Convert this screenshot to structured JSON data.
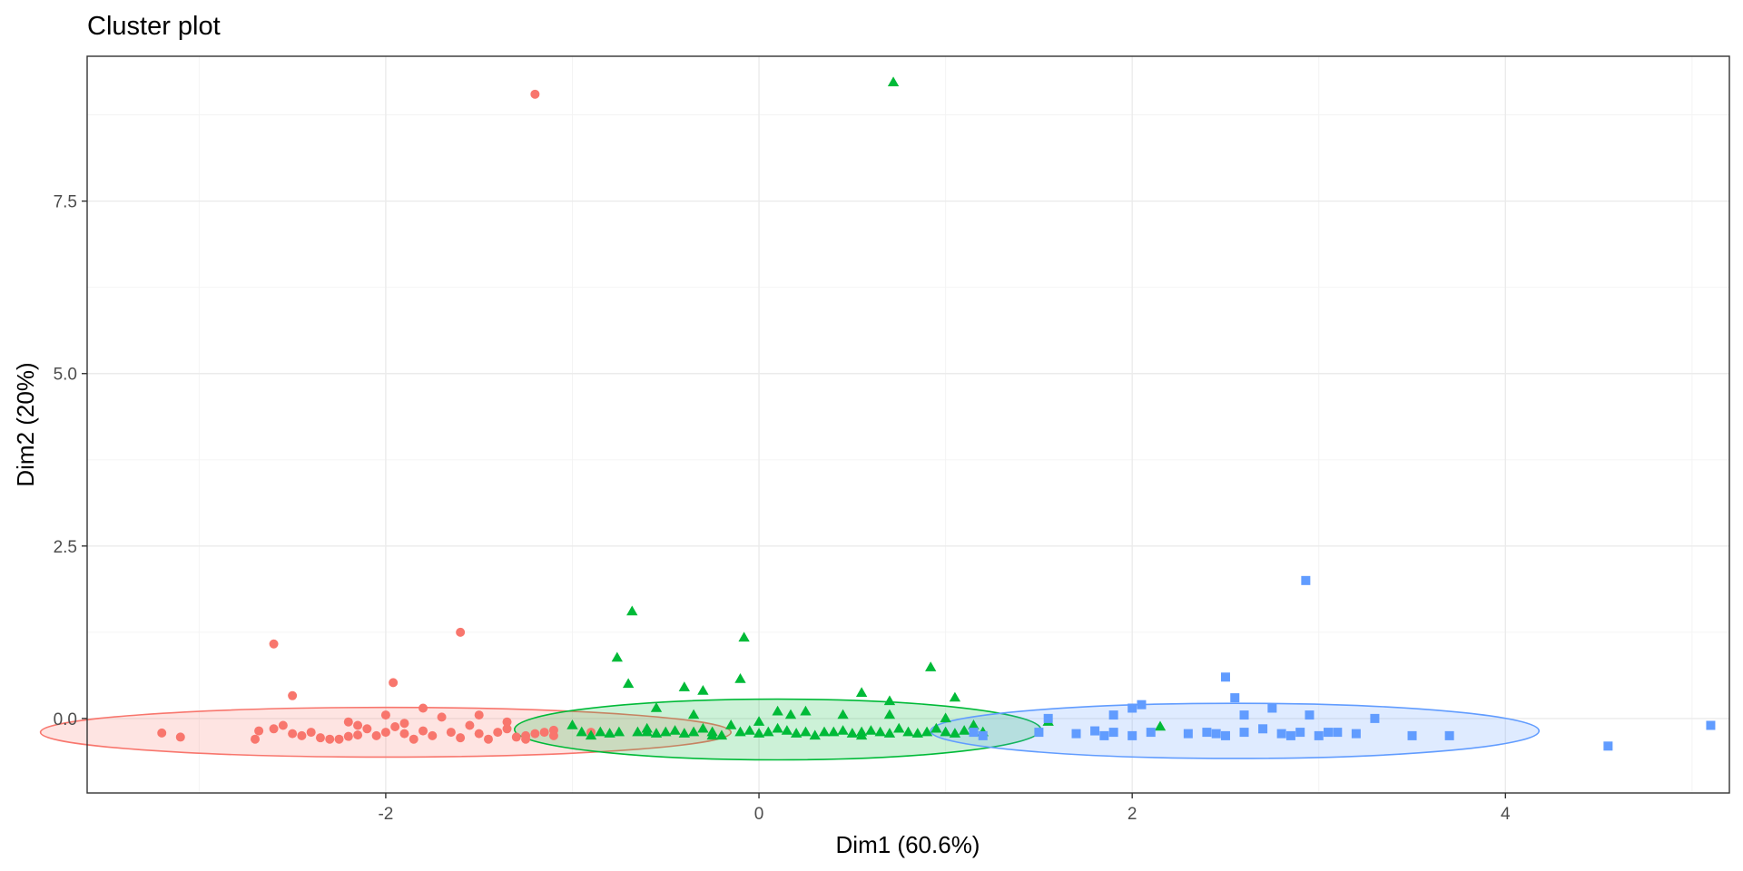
{
  "chart_data": {
    "type": "scatter",
    "title": "Cluster plot",
    "xlabel": "Dim1 (60.6%)",
    "ylabel": "Dim2 (20%)",
    "xlim": [
      -3.6,
      5.2
    ],
    "ylim": [
      -1.08,
      9.6
    ],
    "x_ticks": [
      -2,
      0,
      2,
      4
    ],
    "x_tick_labels": [
      "-2",
      "0",
      "2",
      "4"
    ],
    "y_ticks": [
      0,
      2.5,
      5,
      7.5
    ],
    "y_tick_labels": [
      "0.0",
      "2.5",
      "5.0",
      "7.5"
    ],
    "grid": true,
    "legend": "none",
    "series": [
      {
        "color": "#F8766D",
        "shape": "circle",
        "ellipse": {
          "cx": -2.0,
          "cy": -0.2,
          "rx": 1.85,
          "ry": 0.36
        },
        "points": [
          [
            -1.2,
            9.05
          ],
          [
            -2.6,
            1.08
          ],
          [
            -1.6,
            1.25
          ],
          [
            -2.5,
            0.33
          ],
          [
            -1.96,
            0.52
          ],
          [
            -3.2,
            -0.21
          ],
          [
            -3.1,
            -0.27
          ],
          [
            -2.7,
            -0.3
          ],
          [
            -2.68,
            -0.18
          ],
          [
            -2.6,
            -0.15
          ],
          [
            -2.55,
            -0.1
          ],
          [
            -2.5,
            -0.22
          ],
          [
            -2.45,
            -0.25
          ],
          [
            -2.4,
            -0.2
          ],
          [
            -2.35,
            -0.28
          ],
          [
            -2.25,
            -0.3
          ],
          [
            -2.2,
            -0.05
          ],
          [
            -2.15,
            -0.1
          ],
          [
            -2.1,
            -0.15
          ],
          [
            -2.05,
            -0.25
          ],
          [
            -2.0,
            -0.2
          ],
          [
            -1.95,
            -0.12
          ],
          [
            -1.9,
            -0.22
          ],
          [
            -1.85,
            -0.3
          ],
          [
            -1.8,
            -0.18
          ],
          [
            -1.75,
            -0.25
          ],
          [
            -1.7,
            0.02
          ],
          [
            -1.65,
            -0.2
          ],
          [
            -1.6,
            -0.28
          ],
          [
            -1.55,
            -0.1
          ],
          [
            -1.5,
            -0.22
          ],
          [
            -1.45,
            -0.3
          ],
          [
            -1.4,
            -0.2
          ],
          [
            -1.35,
            -0.15
          ],
          [
            -1.3,
            -0.27
          ],
          [
            -1.25,
            -0.25
          ],
          [
            -1.2,
            -0.22
          ],
          [
            -1.15,
            -0.2
          ],
          [
            -1.1,
            -0.17
          ],
          [
            -2.3,
            -0.3
          ],
          [
            -2.0,
            0.05
          ],
          [
            -1.8,
            0.15
          ],
          [
            -1.5,
            0.05
          ],
          [
            -1.35,
            -0.05
          ],
          [
            -2.15,
            -0.24
          ],
          [
            -1.9,
            -0.07
          ],
          [
            -1.25,
            -0.3
          ],
          [
            -1.1,
            -0.25
          ],
          [
            -0.9,
            -0.2
          ],
          [
            -2.2,
            -0.26
          ]
        ]
      },
      {
        "color": "#00BA38",
        "shape": "triangle",
        "ellipse": {
          "cx": 0.1,
          "cy": -0.16,
          "rx": 1.41,
          "ry": 0.44
        },
        "points": [
          [
            0.72,
            9.22
          ],
          [
            -0.68,
            1.55
          ],
          [
            -0.08,
            1.17
          ],
          [
            -0.76,
            0.88
          ],
          [
            0.92,
            0.74
          ],
          [
            -0.7,
            0.5
          ],
          [
            -0.1,
            0.57
          ],
          [
            -0.4,
            0.45
          ],
          [
            -0.3,
            0.4
          ],
          [
            0.55,
            0.37
          ],
          [
            1.05,
            0.3
          ],
          [
            0.7,
            0.25
          ],
          [
            -0.55,
            0.15
          ],
          [
            0.1,
            0.1
          ],
          [
            0.25,
            0.1
          ],
          [
            0.45,
            0.05
          ],
          [
            -0.35,
            0.05
          ],
          [
            0.17,
            0.05
          ],
          [
            0.7,
            0.05
          ],
          [
            -0.65,
            -0.2
          ],
          [
            -0.6,
            -0.2
          ],
          [
            -0.55,
            -0.22
          ],
          [
            -0.5,
            -0.2
          ],
          [
            -0.45,
            -0.18
          ],
          [
            -0.4,
            -0.22
          ],
          [
            -0.35,
            -0.2
          ],
          [
            -0.3,
            -0.15
          ],
          [
            -0.25,
            -0.2
          ],
          [
            -0.2,
            -0.25
          ],
          [
            -0.15,
            -0.1
          ],
          [
            -0.1,
            -0.2
          ],
          [
            -0.05,
            -0.18
          ],
          [
            0.0,
            -0.22
          ],
          [
            0.05,
            -0.2
          ],
          [
            0.1,
            -0.15
          ],
          [
            0.15,
            -0.18
          ],
          [
            0.2,
            -0.22
          ],
          [
            0.25,
            -0.2
          ],
          [
            0.3,
            -0.25
          ],
          [
            0.35,
            -0.2
          ],
          [
            0.4,
            -0.2
          ],
          [
            0.45,
            -0.18
          ],
          [
            0.5,
            -0.22
          ],
          [
            0.55,
            -0.2
          ],
          [
            0.6,
            -0.18
          ],
          [
            0.65,
            -0.2
          ],
          [
            0.7,
            -0.22
          ],
          [
            0.75,
            -0.15
          ],
          [
            0.8,
            -0.2
          ],
          [
            0.85,
            -0.22
          ],
          [
            0.9,
            -0.2
          ],
          [
            0.95,
            -0.15
          ],
          [
            1.0,
            -0.2
          ],
          [
            1.05,
            -0.22
          ],
          [
            1.1,
            -0.18
          ],
          [
            1.15,
            -0.1
          ],
          [
            1.2,
            -0.2
          ],
          [
            1.55,
            -0.05
          ],
          [
            2.15,
            -0.12
          ],
          [
            -1.0,
            -0.1
          ],
          [
            -0.95,
            -0.2
          ],
          [
            -0.9,
            -0.25
          ],
          [
            -0.85,
            -0.2
          ],
          [
            -0.8,
            -0.22
          ],
          [
            -0.75,
            -0.2
          ],
          [
            -0.6,
            -0.15
          ],
          [
            -0.25,
            -0.25
          ],
          [
            0.0,
            -0.05
          ],
          [
            0.55,
            -0.25
          ],
          [
            1.0,
            0.0
          ]
        ]
      },
      {
        "color": "#619CFF",
        "shape": "square",
        "ellipse": {
          "cx": 2.55,
          "cy": -0.18,
          "rx": 1.63,
          "ry": 0.4
        },
        "points": [
          [
            2.93,
            2.0
          ],
          [
            2.5,
            0.6
          ],
          [
            2.55,
            0.3
          ],
          [
            2.0,
            0.15
          ],
          [
            2.05,
            0.2
          ],
          [
            1.9,
            0.05
          ],
          [
            2.75,
            0.15
          ],
          [
            2.95,
            0.05
          ],
          [
            3.3,
            0.0
          ],
          [
            2.6,
            0.05
          ],
          [
            1.5,
            -0.2
          ],
          [
            1.7,
            -0.22
          ],
          [
            1.8,
            -0.18
          ],
          [
            1.9,
            -0.2
          ],
          [
            2.0,
            -0.25
          ],
          [
            2.1,
            -0.2
          ],
          [
            2.3,
            -0.22
          ],
          [
            2.4,
            -0.2
          ],
          [
            2.5,
            -0.25
          ],
          [
            2.6,
            -0.2
          ],
          [
            2.7,
            -0.15
          ],
          [
            2.8,
            -0.22
          ],
          [
            2.9,
            -0.2
          ],
          [
            3.0,
            -0.25
          ],
          [
            3.1,
            -0.2
          ],
          [
            3.2,
            -0.22
          ],
          [
            3.5,
            -0.25
          ],
          [
            3.7,
            -0.25
          ],
          [
            4.55,
            -0.4
          ],
          [
            5.1,
            -0.1
          ],
          [
            1.55,
            0.0
          ],
          [
            1.15,
            -0.2
          ],
          [
            1.2,
            -0.25
          ],
          [
            1.85,
            -0.25
          ],
          [
            2.45,
            -0.22
          ],
          [
            2.85,
            -0.25
          ],
          [
            3.05,
            -0.2
          ]
        ]
      }
    ]
  }
}
